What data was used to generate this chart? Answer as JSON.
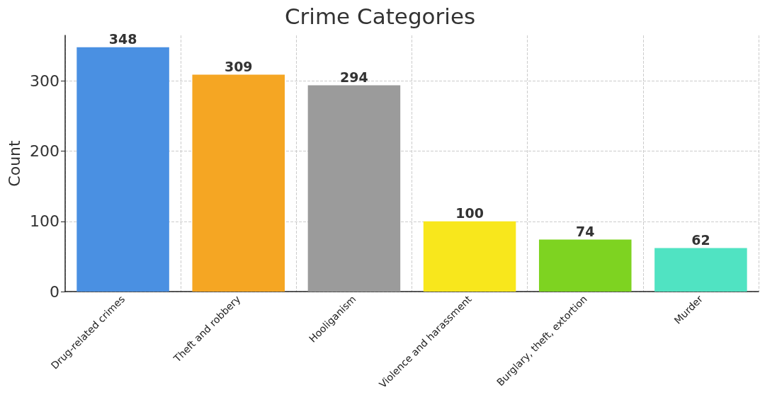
{
  "chart_data": {
    "type": "bar",
    "title": "Crime Categories",
    "ylabel": "Count",
    "categories": [
      "Drug-related crimes",
      "Theft and robbery",
      "Hooliganism",
      "Violence and harassment",
      "Burglary, theft, extortion",
      "Murder"
    ],
    "values": [
      348,
      309,
      294,
      100,
      74,
      62
    ],
    "colors": [
      "#4a90e2",
      "#f5a623",
      "#9b9b9b",
      "#f8e71c",
      "#7ed321",
      "#50e3c2"
    ],
    "ylim": [
      0,
      365
    ],
    "yticks": [
      0,
      100,
      200,
      300
    ],
    "data_labels": true,
    "grid": true
  }
}
